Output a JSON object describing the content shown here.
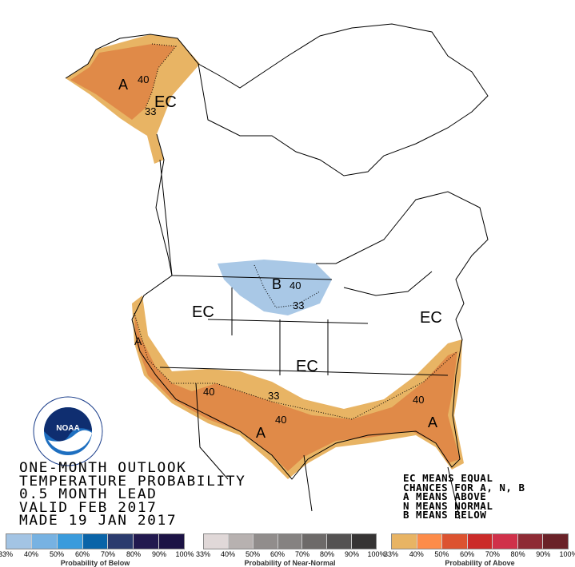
{
  "title_lines": [
    "ONE-MONTH OUTLOOK",
    "TEMPERATURE PROBABILITY",
    "0.5 MONTH LEAD",
    "VALID FEB 2017",
    "MADE 19 JAN 2017"
  ],
  "key_lines": [
    "EC MEANS EQUAL",
    "CHANCES FOR A, N, B",
    "A MEANS ABOVE",
    "N MEANS NORMAL",
    "B MEANS BELOW"
  ],
  "logo": {
    "text": "NOAA",
    "ring_text": "NATIONAL OCEANIC AND ATMOSPHERIC ADMINISTRATION · U.S. DEPARTMENT OF COMMERCE"
  },
  "map_labels": {
    "alaska_a": "A",
    "alaska_40": "40",
    "alaska_ec": "EC",
    "alaska_33": "33",
    "plains_b": "B",
    "plains_40": "40",
    "plains_33": "33",
    "west_ec": "EC",
    "central_ec": "EC",
    "east_ec": "EC",
    "southwest_40": "40",
    "southwest_33": "33",
    "south_40": "40",
    "texas_a": "A",
    "west_coast_a": "A",
    "southeast_40": "40",
    "florida_a": "A"
  },
  "legends": [
    {
      "caption": "Probability of Below",
      "colors": [
        "#a3c4e4",
        "#77b2e2",
        "#3a9bdc",
        "#0a64a8",
        "#2b3b6e",
        "#22194f",
        "#1c1345"
      ],
      "ticks": [
        "33%",
        "40%",
        "50%",
        "60%",
        "70%",
        "80%",
        "90%",
        "100%"
      ]
    },
    {
      "caption": "Probability of Near-Normal",
      "colors": [
        "#e0d8d8",
        "#b7b1b0",
        "#918d8c",
        "#858281",
        "#6d6a69",
        "#545252",
        "#363434"
      ],
      "ticks": [
        "33%",
        "40%",
        "50%",
        "60%",
        "70%",
        "80%",
        "90%",
        "100%"
      ]
    },
    {
      "caption": "Probability of Above",
      "colors": [
        "#e8b464",
        "#fd8c4a",
        "#dc5330",
        "#cb2b29",
        "#d0314a",
        "#8e2b35",
        "#6a2228"
      ],
      "ticks": [
        "33%",
        "40%",
        "50%",
        "60%",
        "70%",
        "80%",
        "90%",
        "100%"
      ]
    }
  ],
  "map_colors": {
    "above_33": "#e8b464",
    "above_40": "#e08a48",
    "below_33": "#a9c8e6",
    "below_40": "#9bbfe3"
  }
}
